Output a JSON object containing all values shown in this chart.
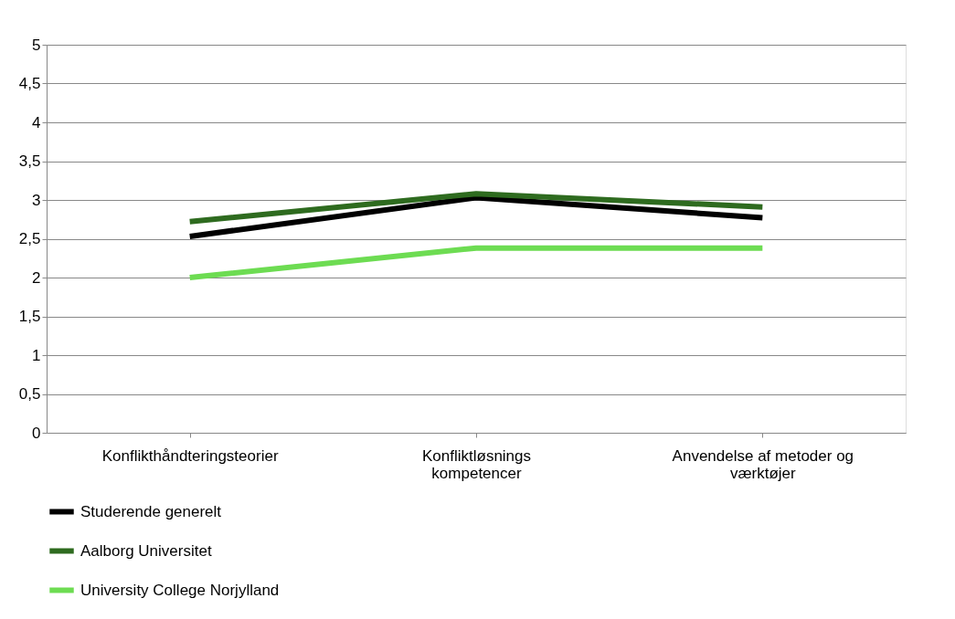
{
  "chart_data": {
    "type": "line",
    "categories": [
      "Konflikthåndteringsteorier",
      "Konfliktløsnings kompetencer",
      "Anvendelse af metoder og værktøjer"
    ],
    "series": [
      {
        "name": "Studerende generelt",
        "color": "#000000",
        "values": [
          2.53,
          3.03,
          2.77
        ]
      },
      {
        "name": "Aalborg Universitet",
        "color": "#2e6b1f",
        "values": [
          2.72,
          3.08,
          2.91
        ]
      },
      {
        "name": "University College Norjylland",
        "color": "#6ddc52",
        "values": [
          2.0,
          2.38,
          2.38
        ]
      }
    ],
    "ylim": [
      0,
      5
    ],
    "yticks": [
      0,
      {
        "value": 0.5,
        "label": "0,5"
      },
      1,
      {
        "value": 1.5,
        "label": "1,5"
      },
      2,
      {
        "value": 2.5,
        "label": "2,5"
      },
      3,
      {
        "value": 3.5,
        "label": "3,5"
      },
      4,
      {
        "value": 4.5,
        "label": "4,5"
      },
      5
    ],
    "grid": "y",
    "legend": "bottom",
    "marker": "none",
    "line_style": "solid"
  }
}
